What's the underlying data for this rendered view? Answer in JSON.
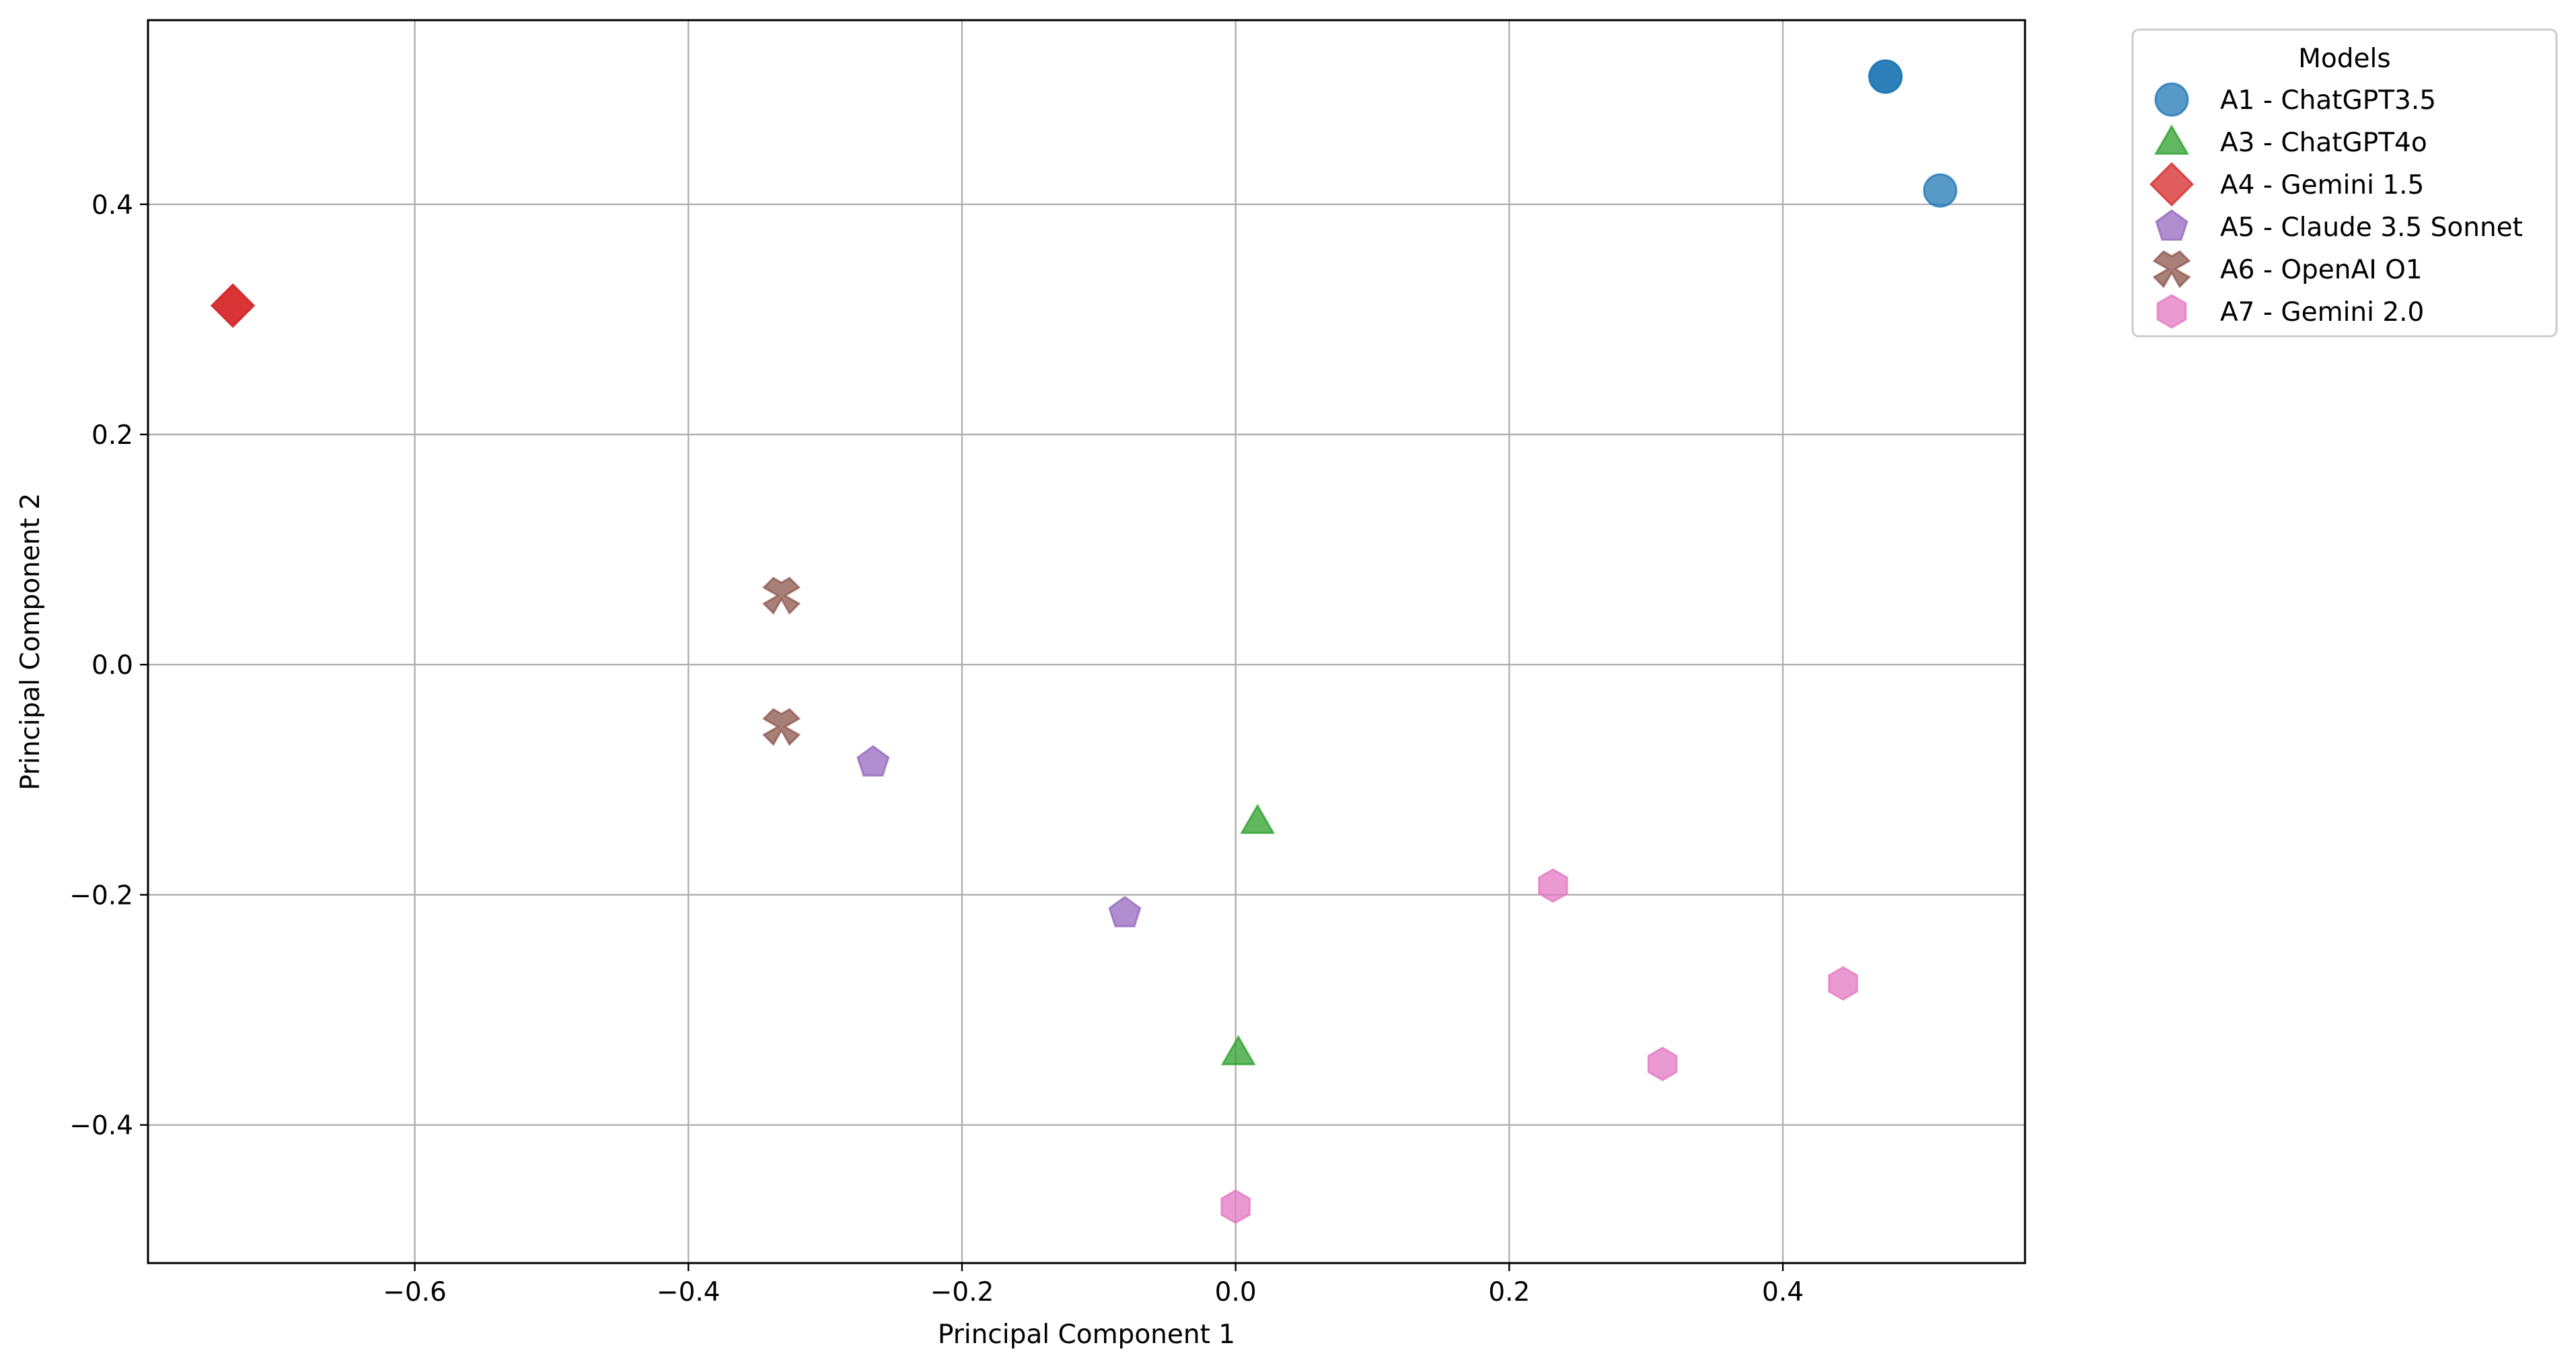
{
  "chart_data": {
    "type": "scatter",
    "title": "",
    "xlabel": "Principal Component 1",
    "ylabel": "Principal Component 2",
    "xlim": [
      -0.795,
      0.577
    ],
    "ylim": [
      -0.52,
      0.56
    ],
    "xticks": [
      -0.6,
      -0.4,
      -0.2,
      0.0,
      0.2,
      0.4
    ],
    "xtick_labels": [
      "−0.6",
      "−0.4",
      "−0.2",
      "0.0",
      "0.2",
      "0.4"
    ],
    "yticks": [
      -0.4,
      -0.2,
      0.0,
      0.2,
      0.4
    ],
    "ytick_labels": [
      "−0.4",
      "−0.2",
      "0.0",
      "0.2",
      "0.4"
    ],
    "grid": true,
    "legend": {
      "title": "Models",
      "placement": "outside upper right"
    },
    "series": [
      {
        "name": "A1 - ChatGPT3.5",
        "marker": "circle",
        "color": "#1f77b4",
        "points": [
          [
            0.475,
            0.511
          ],
          [
            0.475,
            0.511
          ],
          [
            0.515,
            0.412
          ]
        ]
      },
      {
        "name": "A3 - ChatGPT4o",
        "marker": "triangle",
        "color": "#2ca02c",
        "points": [
          [
            0.016,
            -0.136
          ],
          [
            0.002,
            -0.337
          ]
        ]
      },
      {
        "name": "A4 - Gemini 1.5",
        "marker": "diamond",
        "color": "#d62728",
        "points": [
          [
            -0.733,
            0.312
          ],
          [
            -0.733,
            0.312
          ]
        ]
      },
      {
        "name": "A5 - Claude 3.5 Sonnet",
        "marker": "pentagon",
        "color": "#9467bd",
        "points": [
          [
            -0.265,
            -0.085
          ],
          [
            -0.081,
            -0.216
          ]
        ]
      },
      {
        "name": "A6 - OpenAI O1",
        "marker": "x-filled",
        "color": "#8c564b",
        "points": [
          [
            -0.332,
            0.06
          ],
          [
            -0.332,
            -0.054
          ]
        ]
      },
      {
        "name": "A7 - Gemini 2.0",
        "marker": "hexagon",
        "color": "#e377c2",
        "points": [
          [
            0.232,
            -0.192
          ],
          [
            0.444,
            -0.277
          ],
          [
            0.312,
            -0.347
          ],
          [
            0.0,
            -0.471
          ]
        ]
      }
    ]
  }
}
